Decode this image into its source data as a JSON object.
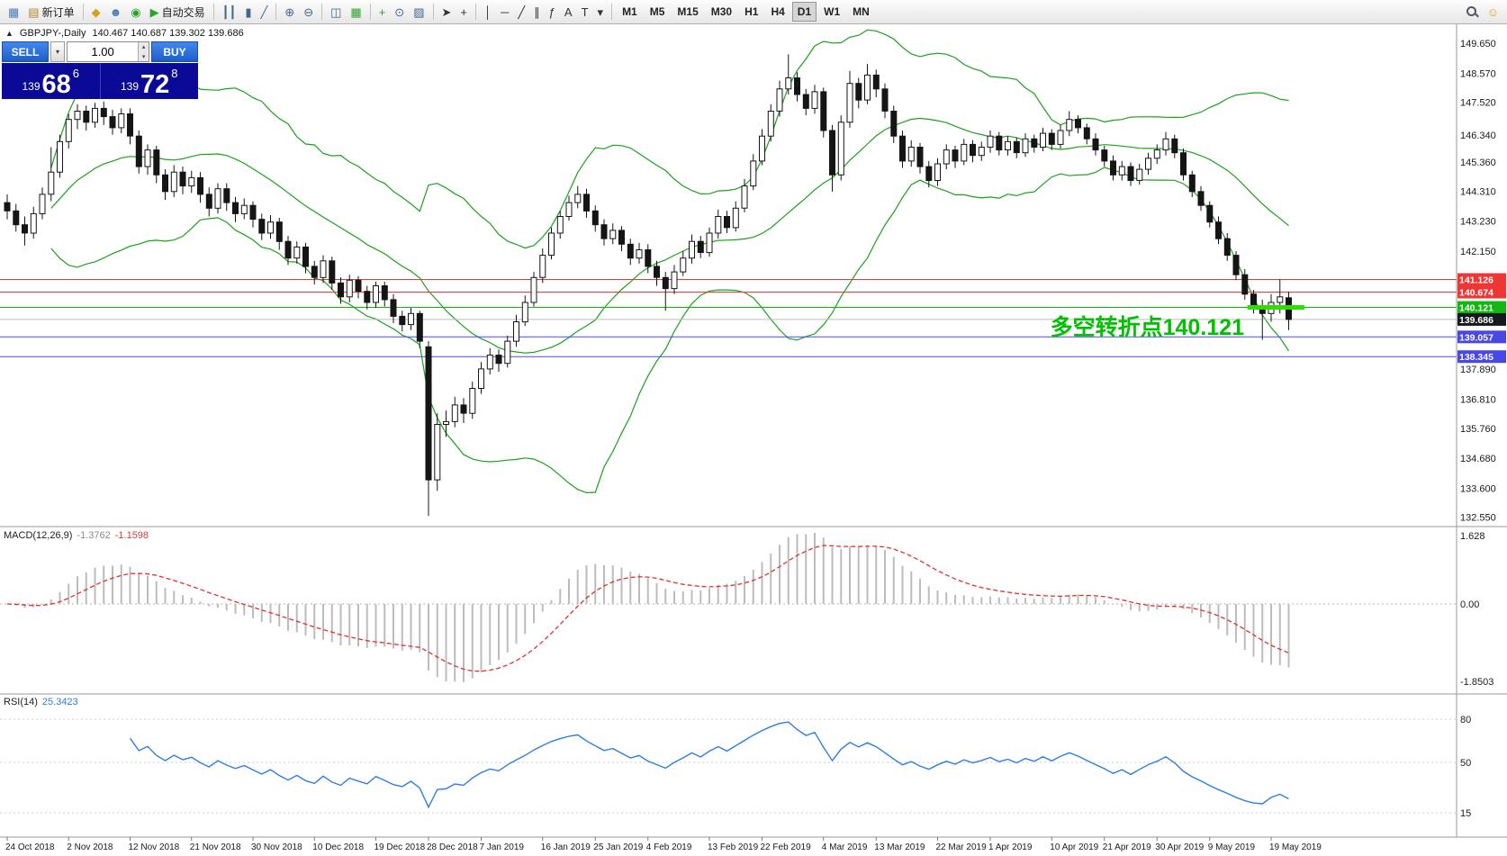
{
  "toolbar": {
    "groups": [
      {
        "items": [
          {
            "name": "new-chart",
            "glyph": "▦",
            "color": "#4a7ab5"
          },
          {
            "name": "new-order",
            "glyph": "▤",
            "color": "#b08030",
            "label": "新订单"
          }
        ]
      },
      {
        "items": [
          {
            "name": "market-watch",
            "glyph": "◆",
            "color": "#d8a018"
          },
          {
            "name": "data-window",
            "glyph": "☻",
            "color": "#4a7ab5"
          },
          {
            "name": "navigator",
            "glyph": "◉",
            "color": "#2ba32b"
          },
          {
            "name": "auto-trading",
            "glyph": "▶",
            "color": "#2ba32b",
            "label": "自动交易"
          }
        ]
      },
      {
        "items": [
          {
            "name": "bar-chart",
            "glyph": "┃┃",
            "color": "#446688"
          },
          {
            "name": "candlestick-chart",
            "glyph": "▮",
            "color": "#446688"
          },
          {
            "name": "line-chart",
            "glyph": "╱",
            "color": "#446688"
          }
        ]
      },
      {
        "items": [
          {
            "name": "zoom-in",
            "glyph": "⊕",
            "color": "#446688"
          },
          {
            "name": "zoom-out",
            "glyph": "⊖",
            "color": "#446688"
          }
        ]
      },
      {
        "items": [
          {
            "name": "tile-windows",
            "glyph": "◫",
            "color": "#446688"
          },
          {
            "name": "grid",
            "glyph": "▦",
            "color": "#2ba32b"
          }
        ]
      },
      {
        "items": [
          {
            "name": "indicators",
            "glyph": "+",
            "color": "#2ba32b"
          },
          {
            "name": "periods",
            "glyph": "⊙",
            "color": "#446688"
          },
          {
            "name": "templates",
            "glyph": "▨",
            "color": "#446688"
          }
        ]
      },
      {
        "items": [
          {
            "name": "cursor",
            "glyph": "➤",
            "color": "#333333"
          },
          {
            "name": "crosshair",
            "glyph": "+",
            "color": "#333333"
          }
        ]
      },
      {
        "items": [
          {
            "name": "vertical-line",
            "glyph": "│",
            "color": "#333333"
          },
          {
            "name": "horizontal-line",
            "glyph": "─",
            "color": "#333333"
          },
          {
            "name": "trendline",
            "glyph": "╱",
            "color": "#333333"
          },
          {
            "name": "equidistant-channel",
            "glyph": "∥",
            "color": "#333333"
          },
          {
            "name": "fibonacci",
            "glyph": "ƒ",
            "color": "#333333"
          },
          {
            "name": "text",
            "glyph": "A",
            "color": "#333333"
          },
          {
            "name": "text-label",
            "glyph": "T",
            "color": "#333333"
          },
          {
            "name": "objects-dropdown",
            "glyph": "▾",
            "color": "#333333"
          }
        ]
      },
      {
        "items": [
          {
            "name": "tf-m1",
            "label": "M1",
            "tf": true
          },
          {
            "name": "tf-m5",
            "label": "M5",
            "tf": true
          },
          {
            "name": "tf-m15",
            "label": "M15",
            "tf": true
          },
          {
            "name": "tf-m30",
            "label": "M30",
            "tf": true
          },
          {
            "name": "tf-h1",
            "label": "H1",
            "tf": true
          },
          {
            "name": "tf-h4",
            "label": "H4",
            "tf": true
          },
          {
            "name": "tf-d1",
            "label": "D1",
            "tf": true,
            "active": true
          },
          {
            "name": "tf-w1",
            "label": "W1",
            "tf": true
          },
          {
            "name": "tf-mn",
            "label": "MN",
            "tf": true
          }
        ]
      }
    ],
    "right_items": [
      {
        "name": "search",
        "magnifier": true
      },
      {
        "name": "community",
        "glyph": "☺",
        "color": "#d8a018"
      }
    ]
  },
  "icons": {
    "chevron_down": "▾",
    "chevron_up": "▴",
    "collapse": "▲"
  },
  "chart_header": {
    "symbol_period": "GBPJPY-,Daily",
    "ohlc": "140.467 140.687 139.302 139.686"
  },
  "trade_panel": {
    "sell_label": "SELL",
    "buy_label": "BUY",
    "lot_size": "1.00",
    "sell_price": {
      "big_figure": "139",
      "pips": "68",
      "pip_fraction": "6"
    },
    "buy_price": {
      "big_figure": "139",
      "pips": "72",
      "pip_fraction": "8"
    }
  },
  "annotation": {
    "text": "多空转折点140.121"
  },
  "macd_panel": {
    "label": "MACD(12,26,9)",
    "value_main": "-1.3762",
    "value_signal": "-1.1598",
    "axis": [
      "1.628",
      "0.00",
      "-1.8503"
    ]
  },
  "rsi_panel": {
    "label": "RSI(14)",
    "value": "25.3423",
    "axis": [
      "80",
      "50",
      "15"
    ]
  },
  "colors": {
    "up_candle": "#ffffff",
    "down_candle": "#151515",
    "bollinger": "#1ca11c",
    "macd_hist": "#bcbcbc",
    "macd_signal": "#e03030",
    "rsi_line": "#2f7de0",
    "line_red": "#f03535",
    "line_green": "#12b812",
    "line_blue": "#4848e8",
    "highlight": "#2ee000",
    "annotation": "#00c000",
    "current_tag_bg": "#15181d"
  },
  "chart_data": {
    "type": "candlestick",
    "symbol": "GBPJPY-",
    "period": "Daily",
    "ohlc_last": {
      "o": 140.467,
      "h": 140.687,
      "l": 139.302,
      "c": 139.686
    },
    "y_axis": {
      "min": 132.2,
      "max": 150.0
    },
    "indicators": {
      "bollinger": {
        "period": 20,
        "deviation": 2
      },
      "macd": {
        "fast": 12,
        "slow": 26,
        "signal": 9
      },
      "rsi": {
        "period": 14
      }
    },
    "price_ticks": [
      "149.650",
      "148.570",
      "147.520",
      "146.340",
      "145.360",
      "144.310",
      "143.230",
      "142.150",
      "137.890",
      "136.810",
      "135.760",
      "134.680",
      "133.600",
      "132.550"
    ],
    "hlines": [
      {
        "price": 141.126,
        "label": "141.126",
        "color": "#f03535"
      },
      {
        "price": 140.674,
        "label": "140.674",
        "color": "#f03535"
      },
      {
        "price": 140.121,
        "label": "140.121",
        "color": "#12b812"
      },
      {
        "price": 139.057,
        "label": "139.057",
        "color": "#4848e8"
      },
      {
        "price": 138.345,
        "label": "138.345",
        "color": "#4848e8"
      }
    ],
    "current_price": {
      "price": 139.686,
      "label": "139.686"
    },
    "highlight_segment": {
      "price": 140.121,
      "from_i": 141.3,
      "to_i": 147.8,
      "color": "#2ee000"
    },
    "date_labels": [
      [
        "24 Oct 2018",
        0
      ],
      [
        "2 Nov 2018",
        7
      ],
      [
        "12 Nov 2018",
        14
      ],
      [
        "21 Nov 2018",
        21
      ],
      [
        "30 Nov 2018",
        28
      ],
      [
        "10 Dec 2018",
        35
      ],
      [
        "19 Dec 2018",
        42
      ],
      [
        "28 Dec 2018",
        48
      ],
      [
        "7 Jan 2019",
        54
      ],
      [
        "16 Jan 2019",
        61
      ],
      [
        "25 Jan 2019",
        67
      ],
      [
        "4 Feb 2019",
        73
      ],
      [
        "13 Feb 2019",
        80
      ],
      [
        "22 Feb 2019",
        86
      ],
      [
        "4 Mar 2019",
        93
      ],
      [
        "13 Mar 2019",
        99
      ],
      [
        "22 Mar 2019",
        106
      ],
      [
        "1 Apr 2019",
        112
      ],
      [
        "10 Apr 2019",
        119
      ],
      [
        "21 Apr 2019",
        125
      ],
      [
        "30 Apr 2019",
        131
      ],
      [
        "9 May 2019",
        137
      ],
      [
        "19 May 2019",
        144
      ]
    ],
    "candles": [
      [
        143.9,
        144.2,
        143.3,
        143.6
      ],
      [
        143.6,
        143.85,
        142.85,
        143.1
      ],
      [
        143.1,
        143.4,
        142.35,
        142.8
      ],
      [
        142.8,
        143.75,
        142.6,
        143.5
      ],
      [
        143.5,
        144.45,
        143.3,
        144.2
      ],
      [
        144.2,
        145.9,
        143.95,
        145.0
      ],
      [
        145.0,
        146.35,
        144.8,
        146.1
      ],
      [
        146.1,
        147.1,
        145.85,
        146.9
      ],
      [
        146.9,
        147.45,
        146.55,
        147.2
      ],
      [
        147.2,
        147.4,
        146.5,
        146.8
      ],
      [
        146.8,
        147.5,
        146.6,
        147.3
      ],
      [
        147.3,
        147.55,
        146.7,
        147.0
      ],
      [
        147.0,
        147.25,
        146.35,
        146.6
      ],
      [
        146.6,
        147.3,
        146.4,
        147.1
      ],
      [
        147.1,
        147.3,
        146.0,
        146.3
      ],
      [
        146.3,
        146.5,
        144.95,
        145.2
      ],
      [
        145.2,
        146.0,
        144.9,
        145.8
      ],
      [
        145.8,
        145.95,
        144.6,
        144.9
      ],
      [
        144.9,
        145.1,
        144.0,
        144.3
      ],
      [
        144.3,
        145.25,
        144.1,
        145.0
      ],
      [
        145.0,
        145.2,
        144.2,
        144.5
      ],
      [
        144.5,
        145.05,
        144.25,
        144.8
      ],
      [
        144.8,
        145.0,
        143.9,
        144.2
      ],
      [
        144.2,
        144.45,
        143.4,
        143.7
      ],
      [
        143.7,
        144.6,
        143.5,
        144.4
      ],
      [
        144.4,
        144.6,
        143.6,
        143.9
      ],
      [
        143.9,
        144.1,
        143.2,
        143.5
      ],
      [
        143.5,
        144.05,
        143.3,
        143.8
      ],
      [
        143.8,
        143.95,
        143.0,
        143.3
      ],
      [
        143.3,
        143.5,
        142.55,
        142.8
      ],
      [
        142.8,
        143.45,
        142.6,
        143.2
      ],
      [
        143.2,
        143.35,
        142.2,
        142.5
      ],
      [
        142.5,
        142.7,
        141.65,
        141.9
      ],
      [
        141.9,
        142.5,
        141.7,
        142.3
      ],
      [
        142.3,
        142.45,
        141.35,
        141.6
      ],
      [
        141.6,
        141.8,
        140.95,
        141.2
      ],
      [
        141.2,
        142.0,
        141.0,
        141.8
      ],
      [
        141.8,
        141.95,
        140.75,
        141.0
      ],
      [
        141.0,
        141.2,
        140.25,
        140.5
      ],
      [
        140.5,
        141.3,
        140.3,
        141.1
      ],
      [
        141.1,
        141.25,
        140.45,
        140.7
      ],
      [
        140.7,
        140.9,
        140.05,
        140.3
      ],
      [
        140.3,
        141.05,
        140.1,
        140.9
      ],
      [
        140.9,
        141.05,
        140.15,
        140.4
      ],
      [
        140.4,
        140.6,
        139.55,
        139.8
      ],
      [
        139.8,
        140.0,
        139.25,
        139.5
      ],
      [
        139.5,
        140.1,
        139.3,
        139.9
      ],
      [
        139.9,
        140.0,
        138.65,
        138.9
      ],
      [
        138.7,
        138.9,
        132.6,
        133.9
      ],
      [
        133.9,
        136.3,
        133.5,
        135.9
      ],
      [
        135.9,
        136.4,
        135.45,
        136.0
      ],
      [
        136.0,
        136.9,
        135.8,
        136.6
      ],
      [
        136.6,
        136.85,
        135.95,
        136.3
      ],
      [
        136.3,
        137.45,
        136.1,
        137.2
      ],
      [
        137.2,
        138.15,
        137.0,
        137.9
      ],
      [
        137.9,
        138.65,
        137.7,
        138.4
      ],
      [
        138.4,
        138.6,
        137.8,
        138.1
      ],
      [
        138.1,
        139.1,
        137.95,
        138.9
      ],
      [
        138.9,
        139.85,
        138.7,
        139.6
      ],
      [
        139.6,
        140.55,
        139.45,
        140.3
      ],
      [
        140.3,
        141.4,
        140.15,
        141.2
      ],
      [
        141.2,
        142.25,
        141.0,
        142.0
      ],
      [
        142.0,
        143.0,
        141.85,
        142.8
      ],
      [
        142.8,
        143.6,
        142.6,
        143.4
      ],
      [
        143.4,
        144.15,
        143.25,
        143.9
      ],
      [
        143.9,
        144.5,
        143.7,
        144.2
      ],
      [
        144.2,
        144.4,
        143.35,
        143.6
      ],
      [
        143.6,
        143.8,
        142.85,
        143.1
      ],
      [
        143.1,
        143.3,
        142.35,
        142.6
      ],
      [
        142.6,
        143.15,
        142.4,
        142.9
      ],
      [
        142.9,
        143.05,
        142.15,
        142.4
      ],
      [
        142.4,
        142.6,
        141.65,
        141.9
      ],
      [
        141.9,
        142.45,
        141.7,
        142.2
      ],
      [
        142.2,
        142.4,
        141.35,
        141.6
      ],
      [
        141.6,
        141.8,
        140.9,
        141.2
      ],
      [
        141.2,
        141.4,
        140.0,
        140.8
      ],
      [
        140.8,
        141.65,
        140.6,
        141.4
      ],
      [
        141.4,
        142.15,
        141.25,
        141.9
      ],
      [
        141.9,
        142.75,
        141.7,
        142.5
      ],
      [
        142.5,
        142.7,
        141.9,
        142.1
      ],
      [
        142.1,
        143.0,
        141.95,
        142.8
      ],
      [
        142.8,
        143.65,
        142.6,
        143.4
      ],
      [
        143.4,
        143.6,
        142.8,
        143.0
      ],
      [
        143.0,
        143.95,
        142.85,
        143.7
      ],
      [
        143.7,
        144.75,
        143.55,
        144.5
      ],
      [
        144.5,
        145.65,
        144.35,
        145.4
      ],
      [
        145.4,
        146.55,
        145.25,
        146.3
      ],
      [
        146.3,
        147.45,
        146.1,
        147.2
      ],
      [
        147.2,
        148.3,
        147.0,
        148.0
      ],
      [
        148.0,
        149.25,
        147.8,
        148.4
      ],
      [
        148.4,
        148.6,
        147.55,
        147.8
      ],
      [
        147.8,
        148.0,
        147.05,
        147.3
      ],
      [
        147.3,
        148.15,
        147.1,
        147.9
      ],
      [
        147.9,
        148.05,
        146.25,
        146.5
      ],
      [
        146.5,
        146.7,
        144.3,
        144.9
      ],
      [
        144.9,
        147.05,
        144.7,
        146.8
      ],
      [
        146.8,
        148.65,
        146.6,
        148.2
      ],
      [
        148.2,
        148.4,
        147.3,
        147.6
      ],
      [
        147.6,
        148.9,
        147.45,
        148.5
      ],
      [
        148.5,
        148.7,
        147.7,
        148.0
      ],
      [
        148.0,
        148.2,
        146.95,
        147.2
      ],
      [
        147.2,
        147.4,
        146.05,
        146.3
      ],
      [
        146.3,
        146.5,
        145.15,
        145.4
      ],
      [
        145.4,
        146.15,
        145.2,
        145.9
      ],
      [
        145.9,
        146.05,
        144.95,
        145.2
      ],
      [
        145.2,
        145.4,
        144.45,
        144.7
      ],
      [
        144.7,
        145.5,
        144.5,
        145.3
      ],
      [
        145.3,
        146.0,
        145.1,
        145.8
      ],
      [
        145.8,
        145.95,
        145.15,
        145.4
      ],
      [
        145.4,
        146.2,
        145.25,
        146.0
      ],
      [
        146.0,
        146.15,
        145.35,
        145.6
      ],
      [
        145.6,
        146.1,
        145.4,
        145.9
      ],
      [
        145.9,
        146.5,
        145.7,
        146.3
      ],
      [
        146.3,
        146.45,
        145.6,
        145.8
      ],
      [
        145.8,
        146.3,
        145.6,
        146.1
      ],
      [
        146.1,
        146.25,
        145.5,
        145.7
      ],
      [
        145.7,
        146.4,
        145.55,
        146.2
      ],
      [
        146.2,
        146.35,
        145.7,
        145.9
      ],
      [
        145.9,
        146.6,
        145.75,
        146.4
      ],
      [
        146.4,
        146.55,
        145.8,
        146.0
      ],
      [
        146.0,
        146.7,
        145.85,
        146.5
      ],
      [
        146.5,
        147.2,
        146.3,
        146.9
      ],
      [
        146.9,
        147.05,
        146.4,
        146.6
      ],
      [
        146.6,
        146.75,
        146.0,
        146.2
      ],
      [
        146.2,
        146.4,
        145.6,
        145.8
      ],
      [
        145.8,
        145.95,
        145.2,
        145.4
      ],
      [
        145.4,
        145.6,
        144.7,
        144.9
      ],
      [
        144.9,
        145.4,
        144.7,
        145.2
      ],
      [
        145.2,
        145.35,
        144.5,
        144.7
      ],
      [
        144.7,
        145.3,
        144.55,
        145.1
      ],
      [
        145.1,
        145.7,
        144.9,
        145.5
      ],
      [
        145.5,
        146.0,
        145.3,
        145.8
      ],
      [
        145.8,
        146.45,
        145.6,
        146.2
      ],
      [
        146.2,
        146.35,
        145.5,
        145.7
      ],
      [
        145.7,
        145.85,
        144.7,
        144.9
      ],
      [
        144.9,
        145.05,
        144.1,
        144.3
      ],
      [
        144.3,
        144.5,
        143.6,
        143.8
      ],
      [
        143.8,
        143.95,
        143.0,
        143.2
      ],
      [
        143.2,
        143.4,
        142.4,
        142.6
      ],
      [
        142.6,
        142.8,
        141.8,
        142.0
      ],
      [
        142.0,
        142.15,
        141.1,
        141.3
      ],
      [
        141.3,
        141.5,
        140.4,
        140.6
      ],
      [
        140.6,
        140.75,
        139.9,
        140.1
      ],
      [
        140.1,
        140.4,
        138.95,
        139.9
      ],
      [
        139.9,
        140.6,
        139.6,
        140.3
      ],
      [
        140.3,
        141.13,
        139.9,
        140.5
      ],
      [
        140.467,
        140.687,
        139.302,
        139.686
      ]
    ]
  }
}
